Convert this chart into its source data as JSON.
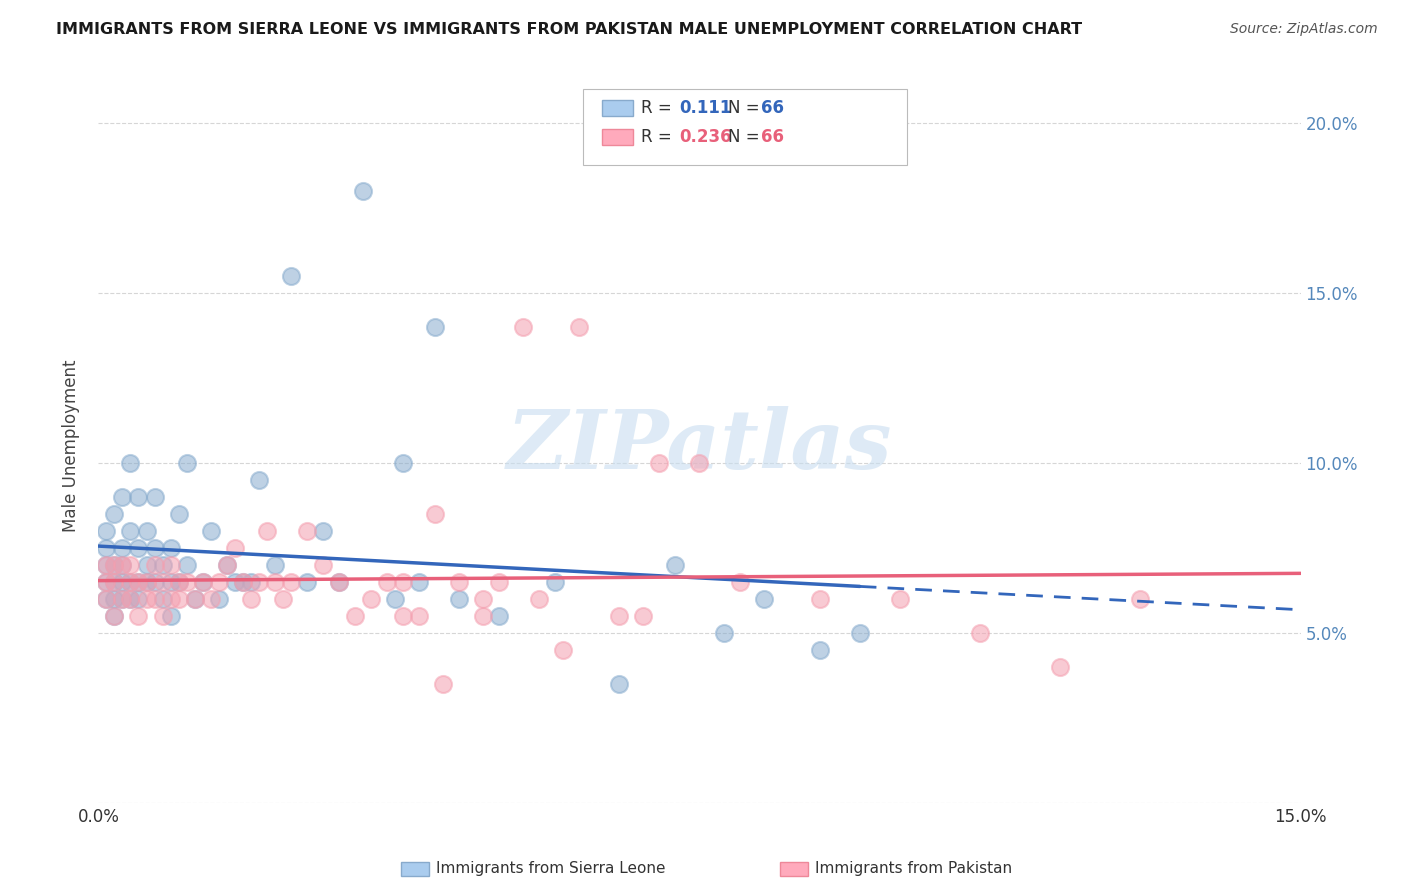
{
  "title": "IMMIGRANTS FROM SIERRA LEONE VS IMMIGRANTS FROM PAKISTAN MALE UNEMPLOYMENT CORRELATION CHART",
  "source": "Source: ZipAtlas.com",
  "ylabel": "Male Unemployment",
  "xlim": [
    0.0,
    0.15
  ],
  "ylim": [
    0.0,
    0.21
  ],
  "color_blue": "#89ACCE",
  "color_pink": "#F4A0B0",
  "color_blue_line": "#3366BB",
  "color_pink_line": "#E8607A",
  "watermark_color": "#C8DDF0",
  "grid_color": "#CCCCCC",
  "sierra_leone_x": [
    0.001,
    0.001,
    0.001,
    0.001,
    0.001,
    0.002,
    0.002,
    0.002,
    0.002,
    0.002,
    0.003,
    0.003,
    0.003,
    0.003,
    0.003,
    0.004,
    0.004,
    0.004,
    0.004,
    0.005,
    0.005,
    0.005,
    0.005,
    0.006,
    0.006,
    0.006,
    0.007,
    0.007,
    0.007,
    0.008,
    0.008,
    0.009,
    0.009,
    0.009,
    0.01,
    0.01,
    0.011,
    0.011,
    0.012,
    0.013,
    0.014,
    0.015,
    0.016,
    0.017,
    0.018,
    0.019,
    0.02,
    0.022,
    0.024,
    0.026,
    0.028,
    0.03,
    0.033,
    0.037,
    0.04,
    0.045,
    0.05,
    0.057,
    0.065,
    0.072,
    0.078,
    0.083,
    0.09,
    0.095,
    0.038,
    0.042
  ],
  "sierra_leone_y": [
    0.065,
    0.07,
    0.075,
    0.08,
    0.06,
    0.065,
    0.07,
    0.085,
    0.055,
    0.06,
    0.07,
    0.09,
    0.075,
    0.065,
    0.06,
    0.08,
    0.065,
    0.06,
    0.1,
    0.065,
    0.075,
    0.09,
    0.06,
    0.07,
    0.08,
    0.065,
    0.09,
    0.075,
    0.065,
    0.07,
    0.06,
    0.075,
    0.065,
    0.055,
    0.085,
    0.065,
    0.1,
    0.07,
    0.06,
    0.065,
    0.08,
    0.06,
    0.07,
    0.065,
    0.065,
    0.065,
    0.095,
    0.07,
    0.155,
    0.065,
    0.08,
    0.065,
    0.18,
    0.06,
    0.065,
    0.06,
    0.055,
    0.065,
    0.035,
    0.07,
    0.05,
    0.06,
    0.045,
    0.05,
    0.1,
    0.14
  ],
  "pakistan_x": [
    0.001,
    0.001,
    0.001,
    0.002,
    0.002,
    0.002,
    0.003,
    0.003,
    0.004,
    0.004,
    0.004,
    0.005,
    0.005,
    0.006,
    0.006,
    0.007,
    0.007,
    0.008,
    0.008,
    0.009,
    0.009,
    0.01,
    0.01,
    0.011,
    0.012,
    0.013,
    0.014,
    0.015,
    0.016,
    0.017,
    0.018,
    0.019,
    0.02,
    0.021,
    0.022,
    0.023,
    0.024,
    0.026,
    0.028,
    0.03,
    0.032,
    0.034,
    0.036,
    0.038,
    0.04,
    0.042,
    0.045,
    0.048,
    0.05,
    0.055,
    0.06,
    0.065,
    0.07,
    0.075,
    0.08,
    0.09,
    0.1,
    0.11,
    0.12,
    0.13,
    0.038,
    0.043,
    0.048,
    0.053,
    0.058,
    0.068
  ],
  "pakistan_y": [
    0.06,
    0.065,
    0.07,
    0.055,
    0.065,
    0.07,
    0.06,
    0.07,
    0.06,
    0.065,
    0.07,
    0.055,
    0.065,
    0.06,
    0.065,
    0.06,
    0.07,
    0.055,
    0.065,
    0.06,
    0.07,
    0.06,
    0.065,
    0.065,
    0.06,
    0.065,
    0.06,
    0.065,
    0.07,
    0.075,
    0.065,
    0.06,
    0.065,
    0.08,
    0.065,
    0.06,
    0.065,
    0.08,
    0.07,
    0.065,
    0.055,
    0.06,
    0.065,
    0.055,
    0.055,
    0.085,
    0.065,
    0.06,
    0.065,
    0.06,
    0.14,
    0.055,
    0.1,
    0.1,
    0.065,
    0.06,
    0.06,
    0.05,
    0.04,
    0.06,
    0.065,
    0.035,
    0.055,
    0.14,
    0.045,
    0.055
  ],
  "legend_R_blue": "0.111",
  "legend_N_blue": "66",
  "legend_R_pink": "0.236",
  "legend_N_pink": "66"
}
